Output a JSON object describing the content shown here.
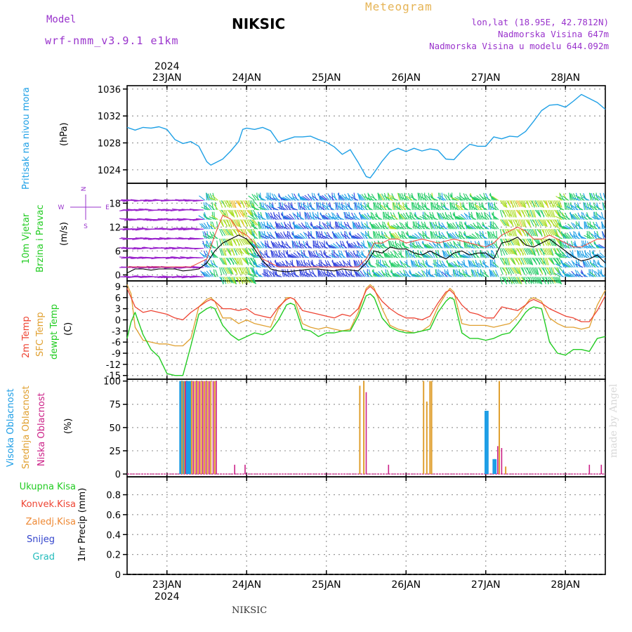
{
  "header": {
    "model_label": "Model",
    "model_name": "wrf-nmm_v3.9.1 e1km",
    "product": "Meteogram",
    "station": "NIKSIC",
    "coords": "lon,lat (18.95E, 42.7812N)",
    "elevation": "Nadmorska Visina 647m",
    "elevation_model": "Nadmorska Visina u modelu 644.092m"
  },
  "footer": {
    "station": "NIKSIC",
    "credit": "made by Angel"
  },
  "colors": {
    "pressure": "#1ea0e6",
    "temp2m": "#ee4433",
    "sfc": "#e0a030",
    "dew": "#22cc22",
    "cloud_high": "#1e9ee6",
    "cloud_mid": "#e0a030",
    "cloud_low": "#cc2288",
    "total_precip": "#22cc22",
    "conv_precip": "#ee4433",
    "frozen_precip": "#ee8833",
    "snow": "#3344cc",
    "graupel": "#22bbbb"
  },
  "chart_data": [
    {
      "type": "line",
      "panel": "pressure",
      "ylabel_name": "Pritisak na nivou mora",
      "ylabel_unit": "(hPa)",
      "ylim": [
        1022,
        1036.5
      ],
      "yticks": [
        "1024",
        "1028",
        "1032",
        "1036"
      ],
      "x_days": [
        "23JAN",
        "24JAN",
        "25JAN",
        "26JAN",
        "27JAN",
        "28JAN"
      ],
      "year": "2024",
      "x_range_days": [
        22.5,
        28.5
      ],
      "grid": true,
      "series": [
        {
          "x": [
            22.5,
            22.6,
            22.7,
            22.8,
            22.9,
            23.0,
            23.1,
            23.2,
            23.3,
            23.4,
            23.5,
            23.55,
            23.6,
            23.7,
            23.8,
            23.9,
            23.95,
            24.0,
            24.1,
            24.2,
            24.3,
            24.4,
            24.5,
            24.6,
            24.7,
            24.8,
            24.9,
            25.0,
            25.1,
            25.2,
            25.3,
            25.4,
            25.5,
            25.55,
            25.6,
            25.7,
            25.8,
            25.9,
            26.0,
            26.1,
            26.2,
            26.3,
            26.4,
            26.5,
            26.6,
            26.7,
            26.8,
            26.9,
            27.0,
            27.1,
            27.2,
            27.3,
            27.4,
            27.5,
            27.6,
            27.7,
            27.8,
            27.9,
            28.0,
            28.1,
            28.2,
            28.3,
            28.4,
            28.5
          ],
          "values": [
            1030.3,
            1029.9,
            1030.3,
            1030.2,
            1030.4,
            1030.0,
            1028.5,
            1027.9,
            1028.2,
            1027.5,
            1025.2,
            1024.7,
            1025.0,
            1025.6,
            1026.8,
            1028.2,
            1030.0,
            1030.2,
            1030.0,
            1030.3,
            1029.8,
            1028.1,
            1028.5,
            1028.9,
            1028.9,
            1029.0,
            1028.5,
            1028.1,
            1027.4,
            1026.3,
            1027.0,
            1025.1,
            1023.0,
            1022.8,
            1023.6,
            1025.3,
            1026.7,
            1027.2,
            1026.7,
            1027.2,
            1026.8,
            1027.1,
            1026.9,
            1025.6,
            1025.5,
            1026.8,
            1027.8,
            1027.5,
            1027.5,
            1028.9,
            1028.6,
            1029.0,
            1028.9,
            1029.7,
            1031.2,
            1032.8,
            1033.6,
            1033.7,
            1033.3,
            1034.2,
            1035.2,
            1034.6,
            1034.0,
            1033.0
          ]
        }
      ]
    },
    {
      "type": "scatter",
      "panel": "wind",
      "ylabel_name": "10m Vjetar",
      "ylabel_name2": "Brzina i Pravac",
      "ylabel_unit": "(m/s)",
      "compass": {
        "n": "N",
        "w": "W",
        "e": "E",
        "s": "S"
      },
      "ylim": [
        -1.5,
        23
      ],
      "yticks": [
        "0",
        "6",
        "12",
        "18"
      ],
      "grid": true,
      "series": [
        {
          "name_key": "speed",
          "x": [
            22.5,
            22.6,
            22.7,
            22.8,
            22.9,
            23.0,
            23.1,
            23.2,
            23.3,
            23.4,
            23.5,
            23.6,
            23.7,
            23.8,
            23.9,
            24.0,
            24.1,
            24.2,
            24.3,
            24.4,
            24.5,
            24.6,
            24.7,
            24.8,
            24.9,
            25.0,
            25.1,
            25.2,
            25.3,
            25.4,
            25.5,
            25.6,
            25.7,
            25.8,
            25.9,
            26.0,
            26.1,
            26.2,
            26.3,
            26.4,
            26.5,
            26.6,
            26.7,
            26.8,
            26.9,
            27.0,
            27.1,
            27.2,
            27.3,
            27.4,
            27.5,
            27.6,
            27.7,
            27.8,
            27.9,
            28.0,
            28.1,
            28.2,
            28.3,
            28.4,
            28.5
          ],
          "values": [
            0.5,
            1.5,
            1.5,
            1.2,
            1.5,
            1.5,
            1.5,
            1.0,
            1.2,
            1.5,
            3.0,
            6.0,
            8.0,
            9.0,
            10.0,
            9.0,
            6.5,
            3.5,
            1.5,
            1.0,
            0.8,
            1.0,
            1.2,
            1.5,
            1.5,
            1.2,
            1.0,
            1.5,
            1.2,
            1.0,
            3.0,
            6.0,
            5.5,
            7.0,
            6.5,
            6.5,
            5.5,
            5.0,
            6.0,
            5.0,
            4.0,
            5.5,
            6.0,
            5.0,
            5.5,
            5.5,
            4.0,
            8.0,
            8.5,
            9.5,
            7.5,
            7.0,
            8.0,
            9.0,
            7.5,
            6.0,
            4.5,
            3.5,
            4.0,
            5.0,
            3.0
          ]
        },
        {
          "name_key": "gust",
          "x": [
            22.5,
            22.7,
            22.9,
            23.1,
            23.3,
            23.5,
            23.6,
            23.7,
            23.8,
            23.9,
            24.0,
            24.1,
            24.2,
            24.4,
            24.6,
            24.8,
            25.0,
            25.2,
            25.4,
            25.5,
            25.6,
            25.7,
            25.8,
            25.9,
            26.0,
            26.2,
            26.4,
            26.6,
            26.8,
            27.0,
            27.1,
            27.2,
            27.3,
            27.4,
            27.5,
            27.6,
            27.7,
            27.8,
            27.9,
            28.0,
            28.1,
            28.2,
            28.3,
            28.4,
            28.5
          ],
          "values": [
            2,
            2,
            2,
            2,
            2,
            4,
            10,
            15,
            14,
            11,
            10,
            8,
            4,
            2,
            2,
            2,
            2,
            2,
            2,
            4,
            8,
            8,
            9,
            9,
            8,
            9,
            8,
            9,
            8,
            7,
            8,
            10,
            11,
            12,
            11,
            9,
            9,
            10,
            9,
            8,
            7,
            7,
            8,
            9,
            9
          ]
        }
      ],
      "barb_colors_by_speed": [
        {
          "max": 3,
          "color": "#3344dd"
        },
        {
          "max": 6,
          "color": "#1ea0e6"
        },
        {
          "max": 9,
          "color": "#22cc66"
        },
        {
          "max": 12,
          "color": "#aadd22"
        },
        {
          "max": 15,
          "color": "#eebb22"
        },
        {
          "max": 100,
          "color": "#ee4433"
        }
      ],
      "calm_color": "#9922cc"
    },
    {
      "type": "line",
      "panel": "temperature",
      "ylabel_names": [
        "2m Temp",
        "SFC Temp",
        "dewpt Temp"
      ],
      "ylabel_unit": "(C)",
      "ylim": [
        -16,
        10.5
      ],
      "yticks": [
        "9",
        "6",
        "3",
        "0",
        "-3",
        "-6",
        "-9",
        "-12",
        "-15"
      ],
      "grid": true,
      "series": [
        {
          "name_key": "temp2m",
          "x": [
            22.5,
            22.55,
            22.6,
            22.7,
            22.8,
            22.9,
            23.0,
            23.1,
            23.2,
            23.3,
            23.4,
            23.5,
            23.55,
            23.6,
            23.7,
            23.8,
            23.9,
            24.0,
            24.1,
            24.2,
            24.3,
            24.4,
            24.5,
            24.55,
            24.6,
            24.7,
            24.8,
            24.9,
            25.0,
            25.1,
            25.2,
            25.3,
            25.4,
            25.5,
            25.55,
            25.6,
            25.7,
            25.8,
            25.9,
            26.0,
            26.1,
            26.2,
            26.3,
            26.4,
            26.5,
            26.55,
            26.6,
            26.7,
            26.8,
            26.9,
            27.0,
            27.1,
            27.2,
            27.3,
            27.4,
            27.5,
            27.55,
            27.6,
            27.7,
            27.8,
            27.9,
            28.0,
            28.1,
            28.2,
            28.3,
            28.4,
            28.5
          ],
          "values": [
            8.5,
            6.0,
            3.5,
            2.0,
            2.5,
            2.0,
            1.5,
            0.5,
            0.0,
            2.0,
            3.5,
            5.0,
            5.5,
            5.0,
            3.0,
            3.0,
            2.5,
            3.0,
            1.5,
            1.0,
            0.5,
            3.5,
            5.5,
            6.0,
            5.5,
            2.5,
            2.0,
            1.5,
            1.0,
            0.5,
            1.5,
            1.0,
            3.0,
            8.0,
            9.0,
            8.0,
            5.0,
            3.0,
            1.5,
            0.5,
            0.5,
            0.0,
            1.0,
            4.5,
            7.5,
            8.0,
            7.0,
            4.0,
            2.0,
            1.5,
            0.5,
            0.5,
            3.5,
            3.0,
            2.5,
            4.0,
            5.0,
            5.5,
            4.5,
            3.0,
            2.0,
            1.0,
            0.5,
            -0.5,
            -0.5,
            2.5,
            6.5
          ]
        },
        {
          "name_key": "sfc",
          "x": [
            22.5,
            22.55,
            22.6,
            22.7,
            22.8,
            22.9,
            23.0,
            23.1,
            23.2,
            23.3,
            23.4,
            23.5,
            23.55,
            23.6,
            23.7,
            23.8,
            23.9,
            24.0,
            24.1,
            24.2,
            24.3,
            24.4,
            24.5,
            24.55,
            24.6,
            24.7,
            24.8,
            24.9,
            25.0,
            25.1,
            25.2,
            25.3,
            25.4,
            25.5,
            25.55,
            25.6,
            25.7,
            25.8,
            25.9,
            26.0,
            26.1,
            26.2,
            26.3,
            26.4,
            26.5,
            26.55,
            26.6,
            26.7,
            26.8,
            26.9,
            27.0,
            27.1,
            27.2,
            27.3,
            27.4,
            27.5,
            27.55,
            27.6,
            27.7,
            27.8,
            27.9,
            28.0,
            28.1,
            28.2,
            28.3,
            28.4,
            28.5
          ],
          "values": [
            9.5,
            7.0,
            -2.0,
            -5.5,
            -6.0,
            -6.5,
            -6.5,
            -7.0,
            -7.0,
            -5.0,
            3.5,
            5.5,
            6.0,
            5.0,
            0.5,
            0.5,
            -1.0,
            0.0,
            -1.0,
            -1.5,
            -2.0,
            3.0,
            6.0,
            6.0,
            5.5,
            -1.0,
            -2.0,
            -2.5,
            -2.0,
            -2.5,
            -3.0,
            -2.5,
            2.0,
            8.5,
            9.5,
            8.5,
            3.0,
            -1.5,
            -2.5,
            -3.0,
            -3.5,
            -3.0,
            -1.5,
            3.5,
            7.0,
            8.5,
            7.5,
            -1.0,
            -1.5,
            -1.5,
            -1.5,
            -2.0,
            -1.5,
            -1.0,
            1.0,
            4.0,
            5.5,
            6.0,
            5.0,
            0.5,
            -1.0,
            -2.0,
            -2.0,
            -2.5,
            -2.0,
            4.0,
            8.0
          ]
        },
        {
          "name_key": "dew",
          "x": [
            22.5,
            22.55,
            22.6,
            22.7,
            22.8,
            22.9,
            23.0,
            23.1,
            23.2,
            23.3,
            23.4,
            23.5,
            23.55,
            23.6,
            23.7,
            23.8,
            23.9,
            24.0,
            24.1,
            24.2,
            24.3,
            24.4,
            24.5,
            24.55,
            24.6,
            24.7,
            24.8,
            24.9,
            25.0,
            25.1,
            25.2,
            25.3,
            25.4,
            25.5,
            25.55,
            25.6,
            25.7,
            25.8,
            25.9,
            26.0,
            26.1,
            26.2,
            26.3,
            26.4,
            26.5,
            26.55,
            26.6,
            26.7,
            26.8,
            26.9,
            27.0,
            27.1,
            27.2,
            27.3,
            27.4,
            27.5,
            27.55,
            27.6,
            27.7,
            27.8,
            27.9,
            28.0,
            28.1,
            28.2,
            28.3,
            28.4,
            28.5
          ],
          "values": [
            -5.0,
            -0.5,
            2.0,
            -4.0,
            -8.0,
            -10.0,
            -14.5,
            -15.0,
            -15.0,
            -7.0,
            1.5,
            3.0,
            3.5,
            3.0,
            -1.5,
            -4.0,
            -5.5,
            -4.5,
            -3.5,
            -4.0,
            -3.0,
            0.0,
            4.0,
            4.5,
            4.0,
            -2.5,
            -3.0,
            -4.5,
            -3.5,
            -3.5,
            -3.0,
            -3.0,
            1.0,
            6.5,
            7.0,
            6.0,
            0.5,
            -2.0,
            -3.0,
            -3.5,
            -3.5,
            -3.0,
            -2.5,
            2.0,
            5.0,
            6.0,
            5.5,
            -3.5,
            -5.0,
            -5.0,
            -5.5,
            -5.0,
            -4.0,
            -3.5,
            -1.0,
            2.0,
            3.0,
            3.5,
            3.0,
            -6.0,
            -9.0,
            -9.5,
            -8.0,
            -8.0,
            -8.5,
            -5.0,
            -4.5
          ]
        }
      ]
    },
    {
      "type": "bar",
      "panel": "cloud",
      "ylabel_names": [
        "Visoka Oblacnost",
        "Srednja Oblacnost",
        "Niska Oblacnost"
      ],
      "ylabel_unit": "(%)",
      "ylim": [
        -3,
        102
      ],
      "yticks": [
        "0",
        "25",
        "50",
        "75",
        "100"
      ],
      "grid": true,
      "series": [
        {
          "name_key": "high",
          "x": [
            23.17,
            23.2,
            23.25,
            23.27,
            23.29,
            27.0,
            27.02,
            27.1,
            27.12
          ],
          "values": [
            100,
            100,
            100,
            100,
            100,
            68,
            68,
            16,
            16
          ]
        },
        {
          "name_key": "mid",
          "x": [
            23.19,
            23.22,
            23.31,
            23.35,
            23.39,
            23.43,
            23.47,
            23.51,
            23.55,
            23.6,
            25.42,
            25.47,
            26.22,
            26.26,
            26.3,
            26.32,
            27.17,
            27.25
          ],
          "values": [
            100,
            100,
            100,
            100,
            100,
            100,
            100,
            100,
            100,
            100,
            95,
            100,
            100,
            78,
            100,
            100,
            100,
            8
          ]
        },
        {
          "name_key": "low",
          "x": [
            23.23,
            23.33,
            23.37,
            23.41,
            23.45,
            23.49,
            23.53,
            23.58,
            23.62,
            23.85,
            23.98,
            25.5,
            25.78,
            27.15,
            27.2,
            28.3,
            28.45
          ],
          "values": [
            100,
            100,
            100,
            100,
            100,
            100,
            100,
            100,
            100,
            10,
            10,
            88,
            10,
            30,
            28,
            10,
            10
          ]
        }
      ]
    },
    {
      "type": "bar",
      "panel": "precip",
      "ylabel_unit": "1hr Precip (mm)",
      "legend": [
        "Ukupna Kisa",
        "Konvek.Kisa",
        "Zaledj.Kisa",
        "Snijeg",
        "Grad"
      ],
      "ylim": [
        0,
        0.98
      ],
      "yticks": [
        "0",
        "0.2",
        "0.4",
        "0.6",
        "0.8"
      ],
      "grid": true,
      "series": [
        {
          "name_key": "total",
          "x": [],
          "values": []
        }
      ]
    }
  ]
}
